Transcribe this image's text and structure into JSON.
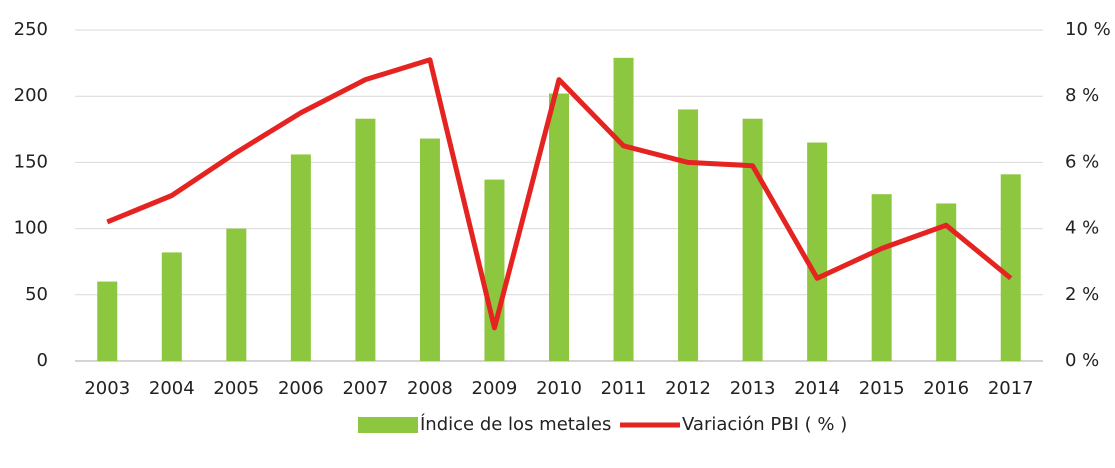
{
  "chart_data": {
    "type": "bar_line",
    "categories": [
      "2003",
      "2004",
      "2005",
      "2006",
      "2007",
      "2008",
      "2009",
      "2010",
      "2011",
      "2012",
      "2013",
      "2014",
      "2015",
      "2016",
      "2017"
    ],
    "series": [
      {
        "name": "Índice de los metales",
        "type": "bar",
        "color": "#8dc63f",
        "axis": "y",
        "values": [
          60,
          82,
          100,
          156,
          183,
          168,
          137,
          202,
          229,
          190,
          183,
          165,
          126,
          119,
          141
        ]
      },
      {
        "name": "Variación PBI ( % )",
        "type": "line",
        "color": "#e52421",
        "axis": "y2",
        "values": [
          4.2,
          5.0,
          6.3,
          7.5,
          8.5,
          9.1,
          1.0,
          8.5,
          6.5,
          6.0,
          5.9,
          2.5,
          3.4,
          4.1,
          2.5
        ]
      }
    ],
    "ylim": [
      0,
      250
    ],
    "yticks": [
      0,
      50,
      100,
      150,
      200,
      250
    ],
    "y2lim": [
      0,
      10
    ],
    "y2ticks": [
      {
        "value": 0,
        "label": "0 %"
      },
      {
        "value": 2,
        "label": "2 %"
      },
      {
        "value": 4,
        "label": "4 %"
      },
      {
        "value": 6,
        "label": "6 %"
      },
      {
        "value": 8,
        "label": "8 %"
      },
      {
        "value": 10,
        "label": "10 %"
      }
    ],
    "grid": true,
    "legend": "bottom"
  }
}
